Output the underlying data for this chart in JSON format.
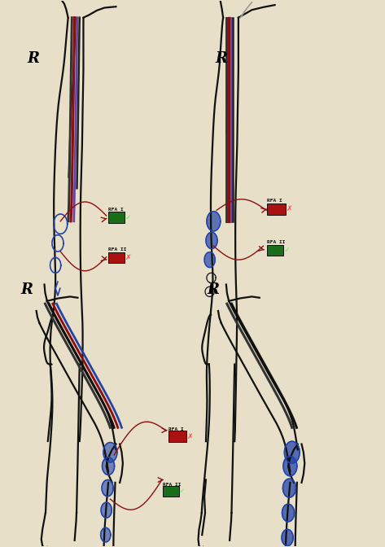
{
  "bg_color": "#e8dfc8",
  "fig_width": 4.73,
  "fig_height": 6.72,
  "dpi": 100,
  "vein_red": "#8B1010",
  "vein_blue": "#2244aa",
  "vein_purple": "#6644aa",
  "vein_dark": "#222222",
  "outline_color": "#111111",
  "arrow_color": "#8B1010",
  "panels": {
    "top_left": {
      "R_pos": [
        0.09,
        0.89
      ],
      "rfa1_text": "RFA I",
      "rfa1_box_color": "#1a6e1a",
      "rfa1_check": true,
      "rfa2_text": "RFA II",
      "rfa2_box_color": "#aa1111",
      "rfa2_check": false
    },
    "top_right": {
      "R_pos": [
        0.59,
        0.89
      ],
      "rfa1_text": "RFA I",
      "rfa1_box_color": "#aa1111",
      "rfa1_check": false,
      "rfa2_text": "RFA II",
      "rfa2_box_color": "#1a6e1a",
      "rfa2_check": true
    },
    "bottom_left": {
      "R_pos": [
        0.07,
        0.47
      ],
      "rfa1_text": "RFA I",
      "rfa1_box_color": "#aa1111",
      "rfa1_check": false,
      "rfa2_text": "RFA II",
      "rfa2_box_color": "#1a6e1a",
      "rfa2_check": true
    },
    "bottom_right": {
      "R_pos": [
        0.55,
        0.47
      ]
    }
  }
}
